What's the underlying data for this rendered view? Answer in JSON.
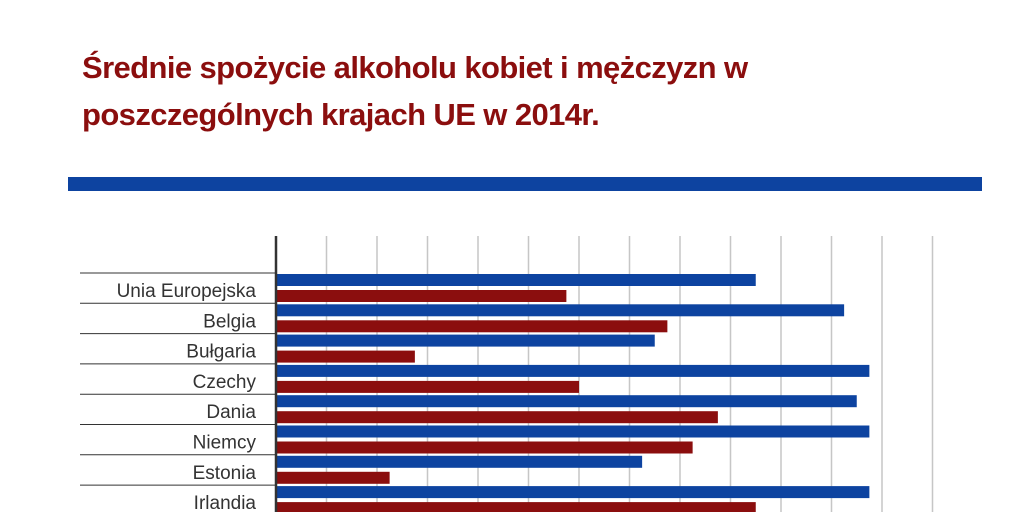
{
  "title": "Średnie spożycie alkoholu kobiet i mężczyzn w poszczególnych krajach UE w 2014r.",
  "colors": {
    "title": "#8b0e0e",
    "divider": "#0d43a0",
    "series_men": "#0d43a0",
    "series_women": "#8b0e0e",
    "grid": "#c6c6c6",
    "axis": "#333333",
    "separator": "#333333"
  },
  "chart_data": {
    "type": "bar",
    "orientation": "horizontal",
    "title": "Średnie spożycie alkoholu kobiet i mężczyzn w poszczególnych krajach UE w 2014r.",
    "xlabel": "",
    "ylabel": "",
    "xlim": [
      0,
      13
    ],
    "grid": true,
    "categories": [
      "Unia Europejska",
      "Belgia",
      "Bułgaria",
      "Czechy",
      "Dania",
      "Niemcy",
      "Estonia",
      "Irlandia"
    ],
    "series": [
      {
        "values": [
          9.5,
          11.25,
          7.5,
          11.75,
          11.5,
          11.75,
          7.25,
          11.75
        ]
      },
      {
        "values": [
          5.75,
          7.75,
          2.75,
          6.0,
          8.75,
          8.25,
          2.25,
          9.5
        ]
      }
    ]
  }
}
